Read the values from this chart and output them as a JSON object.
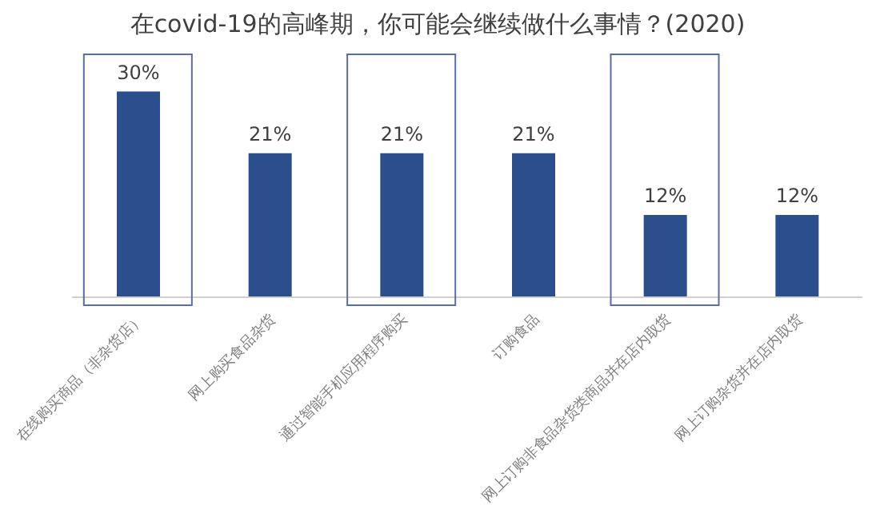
{
  "chart_data": {
    "type": "bar",
    "title": "在covid-19的高峰期，你可能会继续做什么事情？(2020)",
    "categories": [
      "在线购买商品（非杂货店）",
      "网上购买食品杂货",
      "通过智能手机应用程序购买",
      "订购食品",
      "网上订购非食品杂货类商品并在店内取货",
      "网上订购杂货并在店内取货"
    ],
    "values": [
      30,
      21,
      21,
      21,
      12,
      12
    ],
    "value_labels": [
      "30%",
      "21%",
      "21%",
      "21%",
      "12%",
      "12%"
    ],
    "color": "#2b4f8c",
    "grid": false,
    "legend": false
  }
}
